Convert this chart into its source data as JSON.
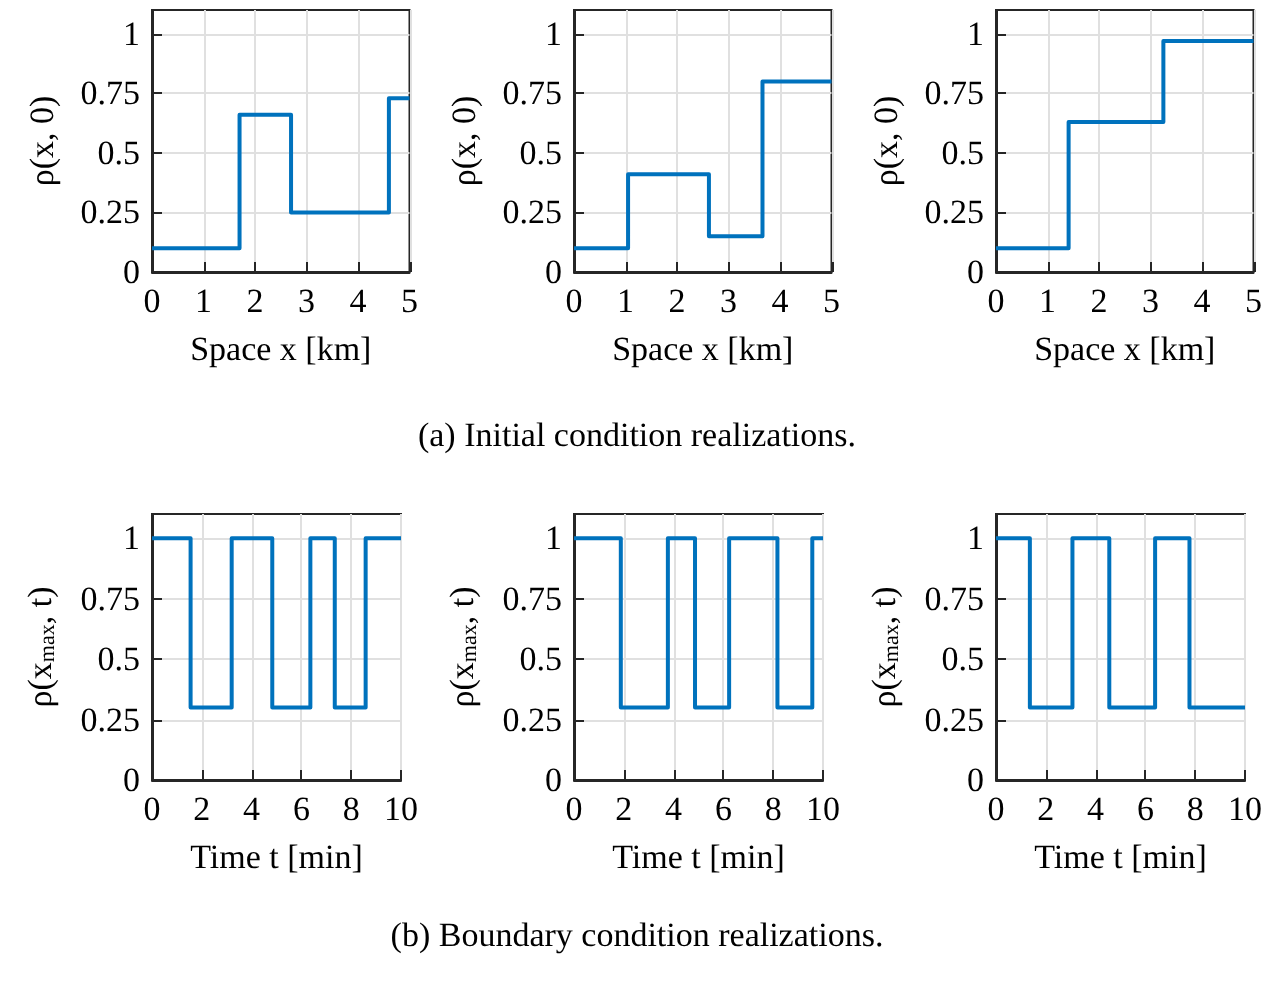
{
  "chart_data": [
    {
      "type": "step",
      "xlabel": "Space x [km]",
      "ylabel": "ρ(x, 0)",
      "x": [
        0,
        1.7,
        2.7,
        4.6,
        5
      ],
      "series": [
        {
          "color": "#0072bd",
          "values": [
            0.1,
            0.66,
            0.25,
            0.73,
            0.73
          ]
        }
      ],
      "xlim": [
        0,
        5
      ],
      "xticks": [
        0,
        1,
        2,
        3,
        4,
        5
      ],
      "ylim": [
        0,
        1.1
      ],
      "yticks": [
        0,
        0.25,
        0.5,
        0.75,
        1
      ],
      "grid": true,
      "line_style": "solid",
      "marker": "none"
    },
    {
      "type": "step",
      "xlabel": "Space x [km]",
      "ylabel": "ρ(x, 0)",
      "x": [
        0,
        1.05,
        2.62,
        3.66,
        5
      ],
      "series": [
        {
          "color": "#0072bd",
          "values": [
            0.1,
            0.41,
            0.15,
            0.8,
            0.8
          ]
        }
      ],
      "xlim": [
        0,
        5
      ],
      "xticks": [
        0,
        1,
        2,
        3,
        4,
        5
      ],
      "ylim": [
        0,
        1.1
      ],
      "yticks": [
        0,
        0.25,
        0.5,
        0.75,
        1
      ],
      "grid": true,
      "line_style": "solid",
      "marker": "none",
      "annotations": [
        "(a) Initial condition realizations."
      ]
    },
    {
      "type": "step",
      "xlabel": "Space x [km]",
      "ylabel": "ρ(x, 0)",
      "x": [
        0,
        1.41,
        3.25,
        5
      ],
      "series": [
        {
          "color": "#0072bd",
          "values": [
            0.1,
            0.63,
            0.97,
            0.97
          ]
        }
      ],
      "xlim": [
        0,
        5
      ],
      "xticks": [
        0,
        1,
        2,
        3,
        4,
        5
      ],
      "ylim": [
        0,
        1.1
      ],
      "yticks": [
        0,
        0.25,
        0.5,
        0.75,
        1
      ],
      "grid": true,
      "line_style": "solid",
      "marker": "none"
    },
    {
      "type": "step",
      "xlabel": "Time t [min]",
      "ylabel": "ρ(x$_{max}$, t)",
      "x": [
        0,
        1.55,
        3.2,
        4.83,
        6.36,
        7.34,
        8.58,
        10
      ],
      "series": [
        {
          "color": "#0072bd",
          "values": [
            1,
            0.3,
            1,
            0.3,
            1,
            0.3,
            1,
            1
          ]
        }
      ],
      "xlim": [
        0,
        10
      ],
      "xticks": [
        0,
        2,
        4,
        6,
        8,
        10
      ],
      "ylim": [
        0,
        1.1
      ],
      "yticks": [
        0,
        0.25,
        0.5,
        0.75,
        1
      ],
      "grid": true,
      "line_style": "solid",
      "marker": "none"
    },
    {
      "type": "step",
      "xlabel": "Time t [min]",
      "ylabel": "ρ(x$_{max}$, t)",
      "x": [
        0,
        1.88,
        3.77,
        4.86,
        6.23,
        8.17,
        9.57,
        10
      ],
      "series": [
        {
          "color": "#0072bd",
          "values": [
            1,
            0.3,
            1,
            0.3,
            1,
            0.3,
            1,
            1
          ]
        }
      ],
      "xlim": [
        0,
        10
      ],
      "xticks": [
        0,
        2,
        4,
        6,
        8,
        10
      ],
      "ylim": [
        0,
        1.1
      ],
      "yticks": [
        0,
        0.25,
        0.5,
        0.75,
        1
      ],
      "grid": true,
      "line_style": "solid",
      "marker": "none",
      "annotations": [
        "(b) Boundary condition realizations."
      ]
    },
    {
      "type": "step",
      "xlabel": "Time t [min]",
      "ylabel": "ρ(x$_{max}$, t)",
      "x": [
        0,
        1.36,
        3.07,
        4.55,
        6.39,
        7.77,
        10
      ],
      "series": [
        {
          "color": "#0072bd",
          "values": [
            1,
            0.3,
            1,
            0.3,
            1,
            0.3,
            0.3
          ]
        }
      ],
      "xlim": [
        0,
        10
      ],
      "xticks": [
        0,
        2,
        4,
        6,
        8,
        10
      ],
      "ylim": [
        0,
        1.1
      ],
      "yticks": [
        0,
        0.25,
        0.5,
        0.75,
        1
      ],
      "grid": true,
      "line_style": "solid",
      "marker": "none"
    }
  ]
}
